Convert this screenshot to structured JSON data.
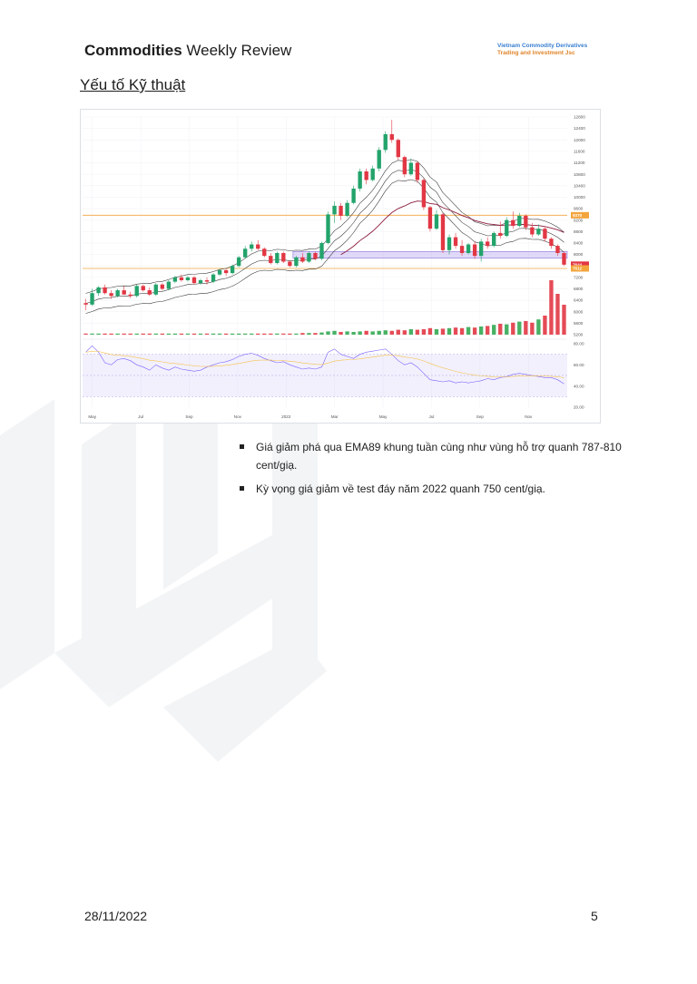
{
  "header": {
    "title_bold": "Commodities",
    "title_rest": " Weekly Review",
    "brand_line1": "Vietnam Commodity Derivatives",
    "brand_line2": "Trading and Investment Jsc"
  },
  "section_heading": "Yếu tố Kỹ thuật",
  "chart_data": {
    "type": "candlestick",
    "period": "weekly",
    "y_ticks": [
      "12800",
      "12400",
      "12000",
      "11600",
      "11200",
      "10800",
      "10400",
      "10000",
      "9600",
      "9200",
      "8800",
      "8400",
      "8000",
      "7600",
      "7200",
      "6800",
      "6400",
      "6000",
      "5600",
      "5200"
    ],
    "x_ticks": [
      "May",
      "Jul",
      "Sep",
      "Nov",
      "2022",
      "Mar",
      "May",
      "Jul",
      "Sep",
      "Nov"
    ],
    "price_labels": [
      {
        "text": "9370",
        "color": "#f3a43b"
      },
      {
        "text": "7644",
        "color": "#e23744"
      },
      {
        "text": "7512",
        "color": "#f3a43b"
      }
    ],
    "horizontal_levels": [
      9370,
      7512
    ],
    "support_zone": [
      7870,
      8100
    ],
    "candles": [
      {
        "o": 6300,
        "h": 6450,
        "l": 6050,
        "c": 6250
      },
      {
        "o": 6250,
        "h": 6800,
        "l": 6200,
        "c": 6650
      },
      {
        "o": 6650,
        "h": 6900,
        "l": 6550,
        "c": 6850
      },
      {
        "o": 6850,
        "h": 6950,
        "l": 6600,
        "c": 6650
      },
      {
        "o": 6650,
        "h": 6750,
        "l": 6450,
        "c": 6550
      },
      {
        "o": 6550,
        "h": 6800,
        "l": 6500,
        "c": 6750
      },
      {
        "o": 6750,
        "h": 6900,
        "l": 6600,
        "c": 6600
      },
      {
        "o": 6600,
        "h": 6700,
        "l": 6480,
        "c": 6550
      },
      {
        "o": 6550,
        "h": 6950,
        "l": 6500,
        "c": 6900
      },
      {
        "o": 6900,
        "h": 6950,
        "l": 6700,
        "c": 6750
      },
      {
        "o": 6750,
        "h": 6850,
        "l": 6550,
        "c": 6600
      },
      {
        "o": 6600,
        "h": 7000,
        "l": 6550,
        "c": 6950
      },
      {
        "o": 6950,
        "h": 7000,
        "l": 6750,
        "c": 6800
      },
      {
        "o": 6800,
        "h": 7100,
        "l": 6750,
        "c": 7050
      },
      {
        "o": 7050,
        "h": 7250,
        "l": 7000,
        "c": 7200
      },
      {
        "o": 7200,
        "h": 7300,
        "l": 7050,
        "c": 7100
      },
      {
        "o": 7100,
        "h": 7250,
        "l": 7050,
        "c": 7200
      },
      {
        "o": 7200,
        "h": 7250,
        "l": 6950,
        "c": 7000
      },
      {
        "o": 7000,
        "h": 7150,
        "l": 6950,
        "c": 7100
      },
      {
        "o": 7100,
        "h": 7200,
        "l": 6950,
        "c": 7050
      },
      {
        "o": 7050,
        "h": 7350,
        "l": 7000,
        "c": 7300
      },
      {
        "o": 7300,
        "h": 7500,
        "l": 7250,
        "c": 7450
      },
      {
        "o": 7450,
        "h": 7500,
        "l": 7250,
        "c": 7350
      },
      {
        "o": 7350,
        "h": 7650,
        "l": 7300,
        "c": 7600
      },
      {
        "o": 7600,
        "h": 7950,
        "l": 7550,
        "c": 7900
      },
      {
        "o": 7900,
        "h": 8300,
        "l": 7850,
        "c": 8200
      },
      {
        "o": 8200,
        "h": 8450,
        "l": 8100,
        "c": 8350
      },
      {
        "o": 8350,
        "h": 8500,
        "l": 8150,
        "c": 8200
      },
      {
        "o": 8200,
        "h": 8250,
        "l": 7900,
        "c": 7950
      },
      {
        "o": 7950,
        "h": 8050,
        "l": 7650,
        "c": 7700
      },
      {
        "o": 7700,
        "h": 8100,
        "l": 7650,
        "c": 8050
      },
      {
        "o": 8050,
        "h": 8100,
        "l": 7700,
        "c": 7750
      },
      {
        "o": 7750,
        "h": 7800,
        "l": 7550,
        "c": 7600
      },
      {
        "o": 7600,
        "h": 7950,
        "l": 7550,
        "c": 7900
      },
      {
        "o": 7900,
        "h": 8050,
        "l": 7700,
        "c": 7750
      },
      {
        "o": 7750,
        "h": 8100,
        "l": 7700,
        "c": 8050
      },
      {
        "o": 8050,
        "h": 8100,
        "l": 7800,
        "c": 7850
      },
      {
        "o": 7850,
        "h": 8450,
        "l": 7800,
        "c": 8400
      },
      {
        "o": 8400,
        "h": 9500,
        "l": 8350,
        "c": 9400
      },
      {
        "o": 9400,
        "h": 9850,
        "l": 9100,
        "c": 9700
      },
      {
        "o": 9700,
        "h": 9800,
        "l": 9200,
        "c": 9350
      },
      {
        "o": 9350,
        "h": 9900,
        "l": 9300,
        "c": 9800
      },
      {
        "o": 9800,
        "h": 10400,
        "l": 9750,
        "c": 10300
      },
      {
        "o": 10300,
        "h": 11000,
        "l": 10200,
        "c": 10900
      },
      {
        "o": 10900,
        "h": 11000,
        "l": 10450,
        "c": 10600
      },
      {
        "o": 10600,
        "h": 11100,
        "l": 10550,
        "c": 11000
      },
      {
        "o": 11000,
        "h": 11750,
        "l": 10900,
        "c": 11650
      },
      {
        "o": 11650,
        "h": 12300,
        "l": 11550,
        "c": 12200
      },
      {
        "o": 12200,
        "h": 12700,
        "l": 11900,
        "c": 12000
      },
      {
        "o": 12000,
        "h": 12050,
        "l": 11300,
        "c": 11400
      },
      {
        "o": 11400,
        "h": 11450,
        "l": 10700,
        "c": 10800
      },
      {
        "o": 10800,
        "h": 11350,
        "l": 10750,
        "c": 11200
      },
      {
        "o": 11200,
        "h": 11250,
        "l": 10500,
        "c": 10600
      },
      {
        "o": 10600,
        "h": 10650,
        "l": 9550,
        "c": 9650
      },
      {
        "o": 9650,
        "h": 9700,
        "l": 8800,
        "c": 8900
      },
      {
        "o": 8900,
        "h": 9550,
        "l": 8850,
        "c": 9400
      },
      {
        "o": 9400,
        "h": 9450,
        "l": 8050,
        "c": 8150
      },
      {
        "o": 8150,
        "h": 8700,
        "l": 8000,
        "c": 8600
      },
      {
        "o": 8600,
        "h": 8750,
        "l": 8200,
        "c": 8300
      },
      {
        "o": 8300,
        "h": 8500,
        "l": 7950,
        "c": 8050
      },
      {
        "o": 8050,
        "h": 8400,
        "l": 8000,
        "c": 8350
      },
      {
        "o": 8350,
        "h": 8450,
        "l": 7850,
        "c": 7950
      },
      {
        "o": 7950,
        "h": 8550,
        "l": 7750,
        "c": 8450
      },
      {
        "o": 8450,
        "h": 8600,
        "l": 8200,
        "c": 8300
      },
      {
        "o": 8300,
        "h": 8800,
        "l": 8250,
        "c": 8750
      },
      {
        "o": 8750,
        "h": 9150,
        "l": 8550,
        "c": 8650
      },
      {
        "o": 8650,
        "h": 9300,
        "l": 8600,
        "c": 9200
      },
      {
        "o": 9200,
        "h": 9500,
        "l": 8900,
        "c": 9000
      },
      {
        "o": 9000,
        "h": 9450,
        "l": 8950,
        "c": 9350
      },
      {
        "o": 9350,
        "h": 9400,
        "l": 8850,
        "c": 8950
      },
      {
        "o": 8950,
        "h": 9100,
        "l": 8600,
        "c": 8700
      },
      {
        "o": 8700,
        "h": 9050,
        "l": 8650,
        "c": 8900
      },
      {
        "o": 8900,
        "h": 8950,
        "l": 8450,
        "c": 8550
      },
      {
        "o": 8550,
        "h": 8600,
        "l": 8200,
        "c": 8300
      },
      {
        "o": 8300,
        "h": 8350,
        "l": 7950,
        "c": 8050
      },
      {
        "o": 8050,
        "h": 8100,
        "l": 7600,
        "c": 7644
      }
    ],
    "volume_relative": [
      0.02,
      0.02,
      0.02,
      0.02,
      0.02,
      0.02,
      0.02,
      0.02,
      0.02,
      0.02,
      0.02,
      0.02,
      0.02,
      0.02,
      0.02,
      0.02,
      0.02,
      0.02,
      0.02,
      0.02,
      0.02,
      0.02,
      0.02,
      0.02,
      0.02,
      0.02,
      0.02,
      0.02,
      0.02,
      0.02,
      0.02,
      0.02,
      0.02,
      0.02,
      0.03,
      0.03,
      0.03,
      0.04,
      0.06,
      0.07,
      0.05,
      0.06,
      0.05,
      0.06,
      0.07,
      0.06,
      0.07,
      0.08,
      0.07,
      0.09,
      0.08,
      0.1,
      0.09,
      0.1,
      0.12,
      0.1,
      0.11,
      0.12,
      0.13,
      0.12,
      0.14,
      0.13,
      0.15,
      0.16,
      0.18,
      0.2,
      0.19,
      0.22,
      0.24,
      0.25,
      0.22,
      0.28,
      0.35,
      1.0,
      0.75,
      0.55
    ],
    "rsi_ticks": [
      "80.00",
      "60.00",
      "40.00",
      "20.00"
    ],
    "rsi": [
      72,
      78,
      72,
      62,
      60,
      65,
      66,
      64,
      60,
      58,
      55,
      60,
      57,
      55,
      58,
      56,
      55,
      54,
      55,
      58,
      60,
      62,
      63,
      65,
      68,
      70,
      71,
      69,
      66,
      64,
      62,
      63,
      60,
      58,
      56,
      57,
      56,
      58,
      72,
      75,
      70,
      68,
      66,
      70,
      72,
      73,
      74,
      75,
      70,
      64,
      60,
      62,
      58,
      52,
      46,
      45,
      44,
      45,
      43,
      44,
      43,
      44,
      45,
      47,
      46,
      48,
      49,
      51,
      52,
      51,
      50,
      49,
      48,
      48,
      46,
      42
    ]
  },
  "bullets": [
    "Giá giảm phá qua EMA89 khung tuần cùng như vùng hỗ trợ quanh 787-810 cent/giạ.",
    "Kỳ vọng giá giảm  về test đáy năm 2022 quanh 750 cent/giạ."
  ],
  "footer": {
    "date": "28/11/2022",
    "page": "5"
  }
}
